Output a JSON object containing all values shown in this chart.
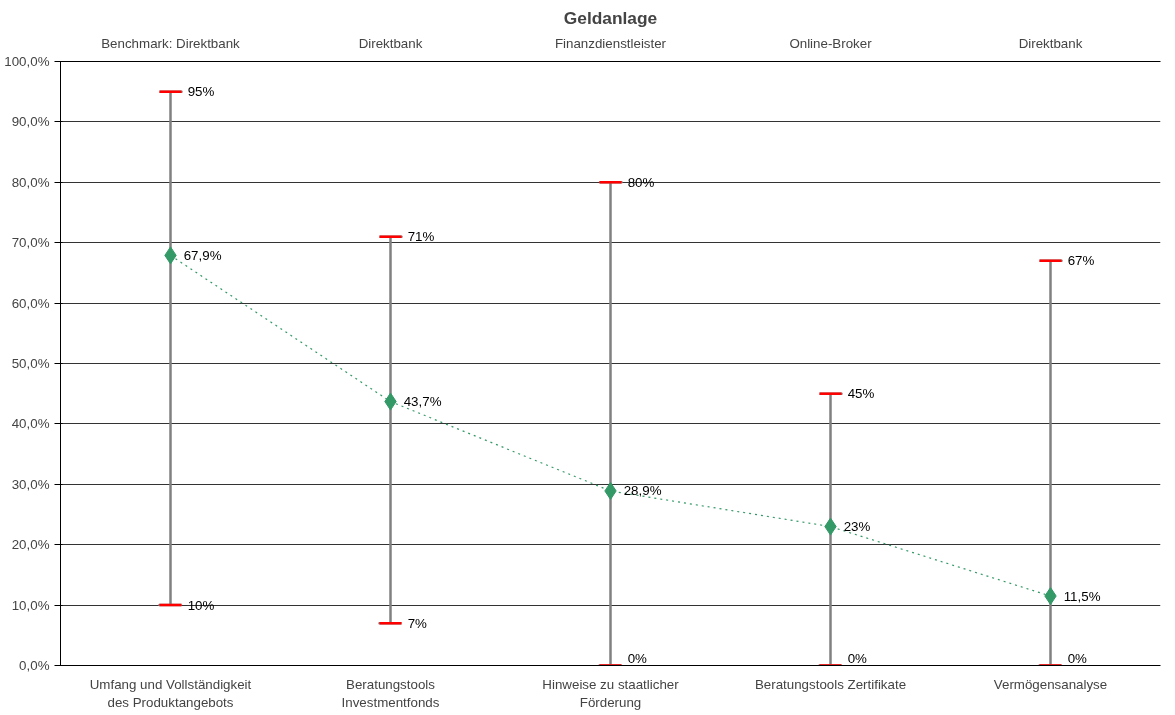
{
  "chart_data": {
    "type": "line",
    "title": "Geldanlage",
    "categories": [
      "Umfang und Vollständigkeit\ndes Produktangebots",
      "Beratungstools\nInvestmentfonds",
      "Hinweise zu staatlicher\nFörderung",
      "Beratungstools Zertifikate",
      "Vermögensanalyse"
    ],
    "series": [
      {
        "color": "#339966",
        "values": [
          67.9,
          43.7,
          28.9,
          23,
          11.5
        ],
        "value_labels": [
          "67,9%",
          "43,7%",
          "28,9%",
          "23%",
          "11,5%"
        ],
        "errors": [
          [
            10,
            95
          ],
          [
            7,
            71
          ],
          [
            0,
            80
          ],
          [
            0,
            45
          ],
          [
            0,
            67
          ]
        ]
      }
    ],
    "marker": "diamond",
    "line_style": "dotted",
    "grid": "y",
    "ylim": [
      0,
      100
    ],
    "yticks": [
      {
        "value": 0,
        "label": "0,0%"
      },
      {
        "value": 10,
        "label": "10,0%"
      },
      {
        "value": 20,
        "label": "20,0%"
      },
      {
        "value": 30,
        "label": "30,0%"
      },
      {
        "value": 40,
        "label": "40,0%"
      },
      {
        "value": 50,
        "label": "50,0%"
      },
      {
        "value": 60,
        "label": "60,0%"
      },
      {
        "value": 70,
        "label": "70,0%"
      },
      {
        "value": 80,
        "label": "80,0%"
      },
      {
        "value": 90,
        "label": "90,0%"
      },
      {
        "value": 100,
        "label": "100,0%"
      }
    ],
    "annotations": [
      "Benchmark: Direktbank",
      "Direktbank",
      "Finanzdienstleister",
      "Online-Broker",
      "Direktbank",
      {
        "text": "95%",
        "x": "Umfang und Vollständigkeit\ndes Produktangebots",
        "y": 95
      },
      {
        "text": "10%",
        "x": "Umfang und Vollständigkeit\ndes Produktangebots",
        "y": 10
      },
      {
        "text": "71%",
        "x": "Beratungstools\nInvestmentfonds",
        "y": 71
      },
      {
        "text": "7%",
        "x": "Beratungstools\nInvestmentfonds",
        "y": 7
      },
      {
        "text": "80%",
        "x": "Hinweise zu staatlicher\nFörderung",
        "y": 80
      },
      {
        "text": "0%",
        "x": "Hinweise zu staatlicher\nFörderung",
        "y": 0
      },
      {
        "text": "45%",
        "x": "Beratungstools Zertifikate",
        "y": 45
      },
      {
        "text": "0%",
        "x": "Beratungstools Zertifikate",
        "y": 0
      },
      {
        "text": "67%",
        "x": "Vermögensanalyse",
        "y": 67
      },
      {
        "text": "0%",
        "x": "Vermögensanalyse",
        "y": 0
      }
    ]
  }
}
